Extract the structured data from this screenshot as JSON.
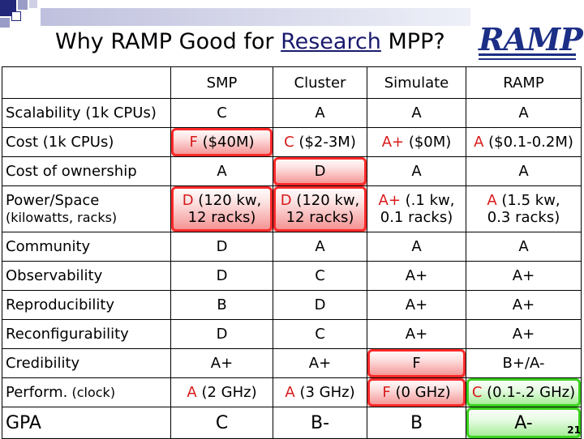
{
  "slide": {
    "title_prefix": "Why RAMP Good for ",
    "title_link": "Research",
    "title_suffix": " MPP?",
    "logo_text": "RAMP",
    "page_number": "21"
  },
  "table": {
    "headers": [
      "SMP",
      "Cluster",
      "Simulate",
      "RAMP"
    ],
    "rows": [
      {
        "label": "Scalability (1k CPUs)",
        "cells": [
          "C",
          "A",
          "A",
          "A"
        ]
      },
      {
        "label": "Cost (1k CPUs)",
        "cells": [
          {
            "grade": "F",
            "note": " ($40M)"
          },
          {
            "grade": "C",
            "note": " ($2-3M)"
          },
          {
            "grade": "A+",
            "note": " ($0M)"
          },
          {
            "grade": "A",
            "note": " ($0.1-0.2M)"
          }
        ]
      },
      {
        "label": "Cost of ownership",
        "cells": [
          "A",
          "D",
          "A",
          "A"
        ]
      },
      {
        "label": "Power/Space",
        "label2": "(kilowatts, racks)",
        "cells": [
          {
            "grade": "D",
            "note": " (120 kw,",
            "note2": "12 racks)"
          },
          {
            "grade": "D",
            "note": " (120 kw,",
            "note2": "12 racks)"
          },
          {
            "grade": "A+",
            "note": " (.1 kw,",
            "note2": "0.1 racks)"
          },
          {
            "grade": "A",
            "note": " (1.5 kw,",
            "note2": "0.3 racks)"
          }
        ]
      },
      {
        "label": "Community",
        "cells": [
          "D",
          "A",
          "A",
          "A"
        ]
      },
      {
        "label": "Observability",
        "cells": [
          "D",
          "C",
          "A+",
          "A+"
        ]
      },
      {
        "label": "Reproducibility",
        "cells": [
          "B",
          "D",
          "A+",
          "A+"
        ]
      },
      {
        "label": "Reconfigurability",
        "cells": [
          "D",
          "C",
          "A+",
          "A+"
        ]
      },
      {
        "label": "Credibility",
        "cells": [
          "A+",
          "A+",
          "F",
          "B+/A-"
        ]
      },
      {
        "label": "Perform.",
        "label_note": " (clock)",
        "cells": [
          {
            "grade": "A",
            "note": " (2 GHz)"
          },
          {
            "grade": "A",
            "note": " (3 GHz)"
          },
          {
            "grade": "F",
            "note": " (0 GHz)"
          },
          {
            "grade": "C",
            "note": " (0.1-.2 GHz)"
          }
        ]
      },
      {
        "label": "GPA",
        "cells": [
          "C",
          "B-",
          "B",
          "A-"
        ]
      }
    ]
  },
  "colors": {
    "grade_red": "#d81a1a",
    "highlight_red": "#ff2a2a",
    "highlight_green": "#3cd11f",
    "logo_blue": "#1c2f86"
  }
}
